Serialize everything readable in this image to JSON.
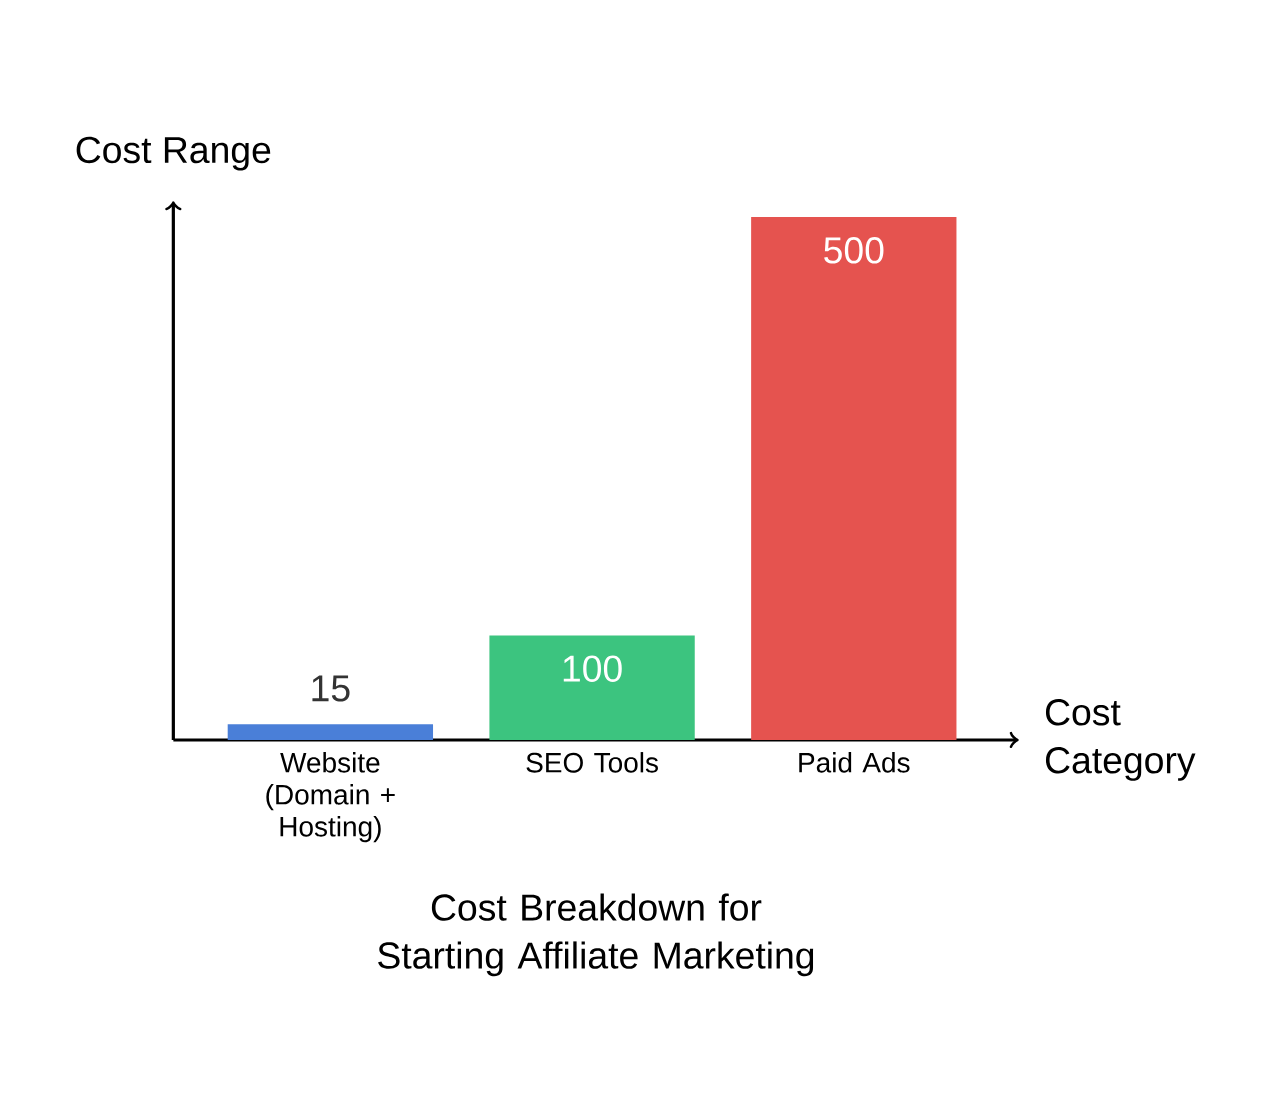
{
  "chart_data": {
    "type": "bar",
    "title": "Cost Breakdown for Starting Affiliate Marketing",
    "xlabel": "Cost Category",
    "ylabel": "Cost Range",
    "categories": [
      "Website (Domain + Hosting)",
      "SEO Tools",
      "Paid Ads"
    ],
    "values": [
      15,
      100,
      500
    ],
    "colors": [
      "#4a7fd8",
      "#3cc47f",
      "#e5534f"
    ],
    "data_labels": true
  }
}
